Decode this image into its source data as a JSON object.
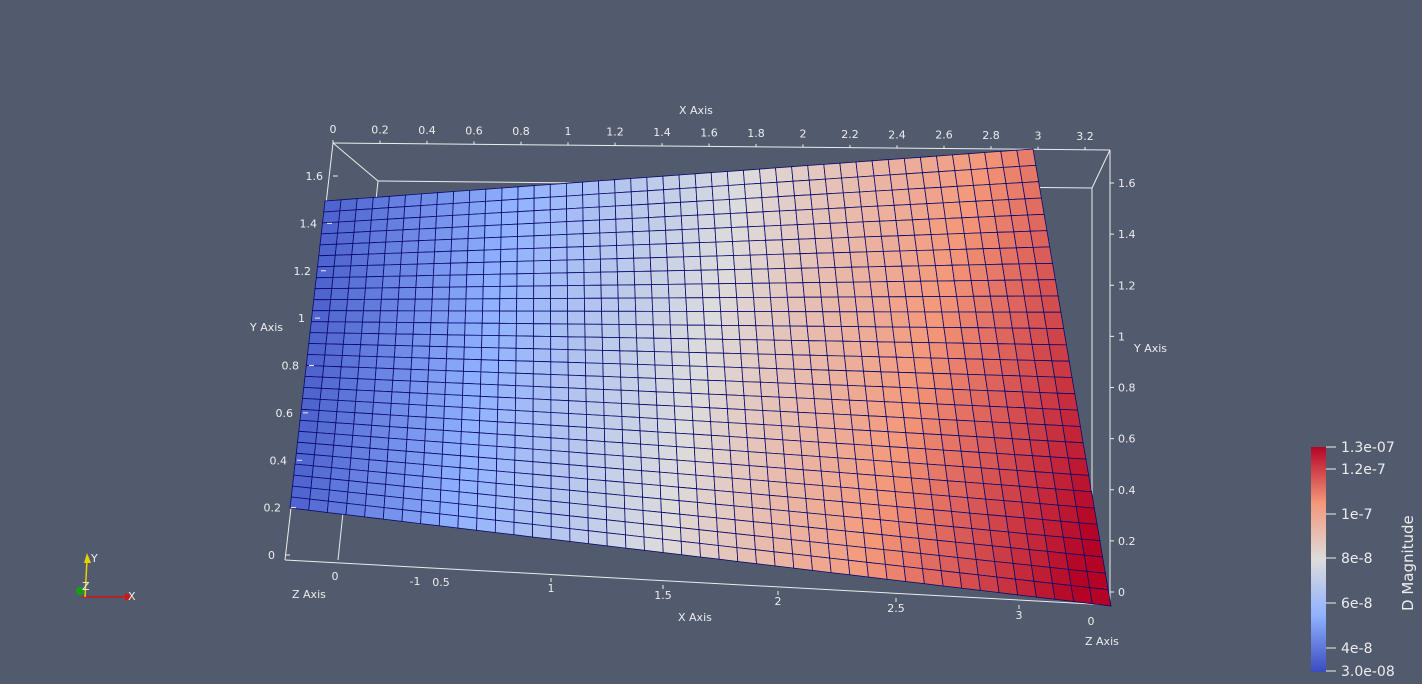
{
  "viewport": {
    "background": "#525b6e",
    "mesh_line_color": "#0a0a6e",
    "box_line_color": "#ececec"
  },
  "axes": {
    "top_x": {
      "title": "X Axis",
      "ticks": [
        "0",
        "0.2",
        "0.4",
        "0.6",
        "0.8",
        "1",
        "1.2",
        "1.4",
        "1.6",
        "1.8",
        "2",
        "2.2",
        "2.4",
        "2.6",
        "2.8",
        "3",
        "3.2"
      ]
    },
    "left_y": {
      "title": "Y Axis",
      "ticks": [
        "0",
        "0.2",
        "0.4",
        "0.6",
        "0.8",
        "1",
        "1.2",
        "1.4",
        "1.6"
      ]
    },
    "right_y": {
      "title": "Y Axis",
      "ticks": [
        "0",
        "0.2",
        "0.4",
        "0.6",
        "0.8",
        "1",
        "1.2",
        "1.4",
        "1.6"
      ]
    },
    "bottom_x": {
      "title": "X Axis",
      "ticks": [
        "1",
        "1.5",
        "2",
        "2.5",
        "3"
      ]
    },
    "bottom_z_left": {
      "title": "Z Axis",
      "ticks": [
        "0",
        "-1",
        "0.5"
      ]
    },
    "bottom_z_right": {
      "title": "Z Axis",
      "ticks": [
        "0"
      ]
    }
  },
  "colorbar": {
    "title": "D Magnitude",
    "labels": [
      "1.3e-07",
      "1.2e-7",
      "1e-7",
      "8e-8",
      "6e-8",
      "4e-8",
      "3.0e-08"
    ],
    "colors": [
      "#3b4cc0",
      "#8fb1fe",
      "#dddcdc",
      "#f4987a",
      "#b40426"
    ]
  },
  "orientation_axes": {
    "x_label": "X",
    "y_label": "Y",
    "z_label": "Z",
    "x_color": "#d21414",
    "y_color": "#e6d200",
    "z_color": "#14a014"
  }
}
